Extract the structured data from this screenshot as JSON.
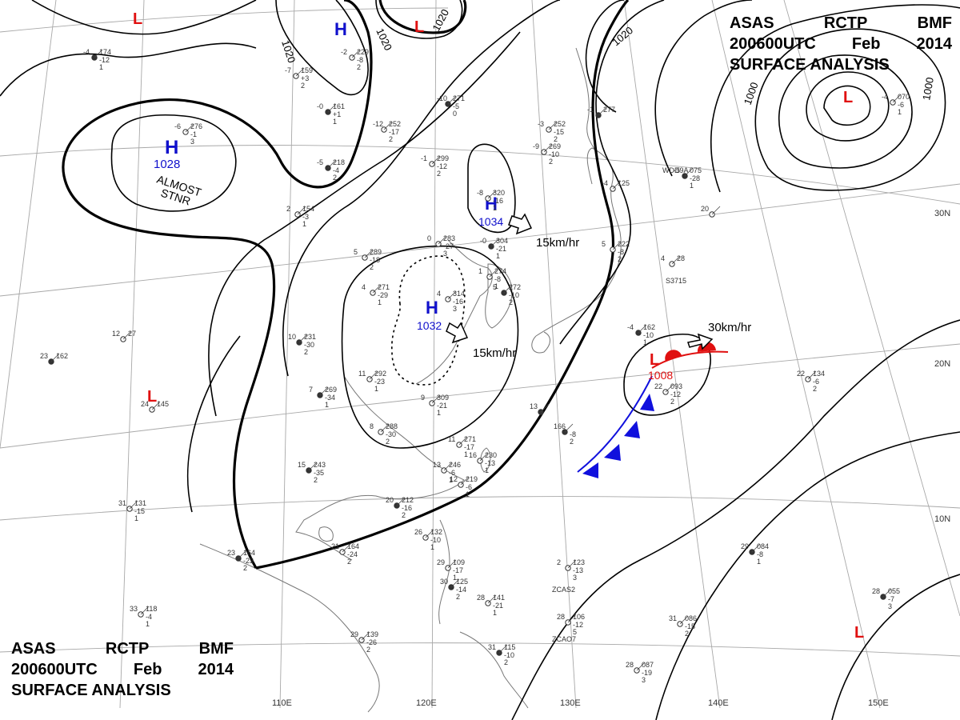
{
  "header": {
    "agency": "ASAS",
    "station": "RCTP",
    "office": "BMF",
    "time": "200600UTC",
    "month": "Feb",
    "year": "2014",
    "product": "SURFACE ANALYSIS"
  },
  "isobar_labels": [
    "1020",
    "1020",
    "1020",
    "1020",
    "1000",
    "1000"
  ],
  "pressure_systems": [
    {
      "type": "H",
      "pressure": "1028",
      "note_line1": "ALMOST",
      "note_line2": "STNR",
      "color": "#1010cc"
    },
    {
      "type": "H",
      "pressure": "1034",
      "motion": "15km/hr",
      "color": "#1010cc"
    },
    {
      "type": "H",
      "pressure": "1032",
      "motion": "15km/hr",
      "color": "#1010cc"
    },
    {
      "type": "L",
      "pressure": "1008",
      "motion": "30km/hr",
      "color": "#e01010"
    },
    {
      "type": "H",
      "pressure": "",
      "color": "#1010cc"
    },
    {
      "type": "L",
      "pressure": "",
      "color": "#e01010"
    },
    {
      "type": "L",
      "pressure": "",
      "color": "#e01010"
    },
    {
      "type": "L",
      "pressure": "",
      "color": "#e01010"
    },
    {
      "type": "L",
      "pressure": "",
      "color": "#e01010"
    },
    {
      "type": "L",
      "pressure": "",
      "color": "#e01010"
    }
  ],
  "fronts": [
    {
      "kind": "cold",
      "color": "#1010dd"
    },
    {
      "kind": "warm",
      "color": "#e01010"
    }
  ],
  "grid": {
    "longitudes": [
      "110E",
      "120E",
      "130E",
      "140E",
      "150E"
    ],
    "latitudes": [
      "30N",
      "20N",
      "10N"
    ]
  },
  "station_plots": [
    {
      "temp": "-4",
      "pressure": "174",
      "dew": "-12",
      "tend": "1"
    },
    {
      "temp": "-7",
      "pressure": "159",
      "dew": "+3",
      "tend": "2"
    },
    {
      "temp": "-2",
      "pressure": "229",
      "dew": "-8",
      "tend": "2"
    },
    {
      "temp": "-0",
      "pressure": "161",
      "dew": "+1",
      "tend": "1"
    },
    {
      "temp": "-6",
      "pressure": "276",
      "dew": "-1",
      "tend": "3"
    },
    {
      "temp": "-12",
      "pressure": "252",
      "dew": "-17",
      "tend": "2"
    },
    {
      "temp": "-10",
      "pressure": "271",
      "dew": "-5",
      "tend": "0"
    },
    {
      "temp": "-1",
      "pressure": "299",
      "dew": "-12",
      "tend": "2"
    },
    {
      "temp": "-8",
      "pressure": "320",
      "dew": "-16",
      "tend": "1"
    },
    {
      "temp": "-5",
      "pressure": "218",
      "dew": "-4",
      "tend": "2"
    },
    {
      "temp": "2",
      "pressure": "154",
      "dew": "-3",
      "tend": "1"
    },
    {
      "temp": "0",
      "pressure": "283",
      "dew": "-27",
      "tend": "3"
    },
    {
      "temp": "-0",
      "pressure": "304",
      "dew": "-21",
      "tend": "1"
    },
    {
      "temp": "5",
      "pressure": "289",
      "dew": "-18",
      "tend": "2"
    },
    {
      "temp": "1",
      "pressure": "274",
      "dew": "-8",
      "tend": "1"
    },
    {
      "temp": "5",
      "pressure": "272",
      "dew": "-10",
      "tend": "2"
    },
    {
      "temp": "4",
      "pressure": "271",
      "dew": "-29",
      "tend": "1"
    },
    {
      "temp": "4",
      "pressure": "314",
      "dew": "-16",
      "tend": "3"
    },
    {
      "temp": "10",
      "pressure": "231",
      "dew": "-30",
      "tend": "2"
    },
    {
      "temp": "11",
      "pressure": "292",
      "dew": "-23",
      "tend": "1"
    },
    {
      "temp": "9",
      "pressure": "309",
      "dew": "-21",
      "tend": "1"
    },
    {
      "temp": "7",
      "pressure": "269",
      "dew": "-34",
      "tend": "1"
    },
    {
      "temp": "8",
      "pressure": "288",
      "dew": "-30",
      "tend": "2"
    },
    {
      "temp": "11",
      "pressure": "271",
      "dew": "-17",
      "tend": "1"
    },
    {
      "temp": "15",
      "pressure": "243",
      "dew": "-35",
      "tend": "2"
    },
    {
      "temp": "13",
      "pressure": "246",
      "dew": "-6",
      "tend": "1"
    },
    {
      "temp": "12",
      "pressure": "219",
      "dew": "-6",
      "tend": "1"
    },
    {
      "temp": "20",
      "pressure": "212",
      "dew": "-16",
      "tend": "2"
    },
    {
      "temp": "16",
      "pressure": "230",
      "dew": "-13",
      "tend": "1"
    },
    {
      "temp": "21",
      "pressure": "164",
      "dew": "-24",
      "tend": "2"
    },
    {
      "temp": "23",
      "pressure": "164",
      "dew": "-23",
      "tend": "2"
    },
    {
      "temp": "26",
      "pressure": "132",
      "dew": "-10",
      "tend": "1"
    },
    {
      "temp": "29",
      "pressure": "109",
      "dew": "-17",
      "tend": "1"
    },
    {
      "temp": "30",
      "pressure": "125",
      "dew": "-14",
      "tend": "2"
    },
    {
      "temp": "28",
      "pressure": "141",
      "dew": "-21",
      "tend": "1"
    },
    {
      "temp": "29",
      "pressure": "139",
      "dew": "-26",
      "tend": "2"
    },
    {
      "temp": "31",
      "pressure": "115",
      "dew": "-10",
      "tend": "2"
    },
    {
      "temp": "33",
      "pressure": "118",
      "dew": "-4",
      "tend": "1"
    },
    {
      "temp": "31",
      "pressure": "131",
      "dew": "-15",
      "tend": "1"
    },
    {
      "temp": "23",
      "pressure": "162",
      "dew": "",
      "tend": ""
    },
    {
      "temp": "24",
      "pressure": "145",
      "dew": "",
      "tend": ""
    },
    {
      "temp": "12",
      "pressure": "27",
      "dew": "",
      "tend": ""
    },
    {
      "temp": "13",
      "pressure": "",
      "dew": "",
      "tend": ""
    },
    {
      "temp": "2",
      "pressure": "123",
      "dew": "-13",
      "tend": "3"
    },
    {
      "temp": "28",
      "pressure": "106",
      "dew": "-12",
      "tend": "5"
    },
    {
      "temp": "29",
      "pressure": "084",
      "dew": "-8",
      "tend": "1"
    },
    {
      "temp": "31",
      "pressure": "086",
      "dew": "-15",
      "tend": "2"
    },
    {
      "temp": "28",
      "pressure": "087",
      "dew": "-19",
      "tend": "3"
    },
    {
      "temp": "28",
      "pressure": "055",
      "dew": "-7",
      "tend": "3"
    },
    {
      "temp": "22",
      "pressure": "134",
      "dew": "-6",
      "tend": "2"
    },
    {
      "temp": "22",
      "pressure": "093",
      "dew": "-12",
      "tend": "2"
    },
    {
      "temp": "166",
      "pressure": "",
      "dew": "-8",
      "tend": "2"
    },
    {
      "temp": "5",
      "pressure": "222",
      "dew": "-8",
      "tend": "2"
    },
    {
      "temp": "4",
      "pressure": "28",
      "dew": "",
      "tend": ""
    },
    {
      "temp": "-4",
      "pressure": "162",
      "dew": "-10",
      "tend": "1"
    },
    {
      "temp": "-9",
      "pressure": "269",
      "dew": "-10",
      "tend": "2"
    },
    {
      "temp": "-3",
      "pressure": "252",
      "dew": "-15",
      "tend": "2"
    },
    {
      "temp": "-5",
      "pressure": "075",
      "dew": "-28",
      "tend": "1"
    },
    {
      "temp": "-4",
      "pressure": "070",
      "dew": "-6",
      "tend": "1"
    },
    {
      "temp": "20",
      "pressure": "",
      "dew": "",
      "tend": ""
    },
    {
      "temp": "-1",
      "pressure": "277",
      "dew": "",
      "tend": ""
    },
    {
      "temp": "-4",
      "pressure": "125",
      "dew": "",
      "tend": ""
    }
  ],
  "ship_ids": [
    "WDD9A",
    "S3715",
    "ZCAS2",
    "ZCAO7"
  ]
}
